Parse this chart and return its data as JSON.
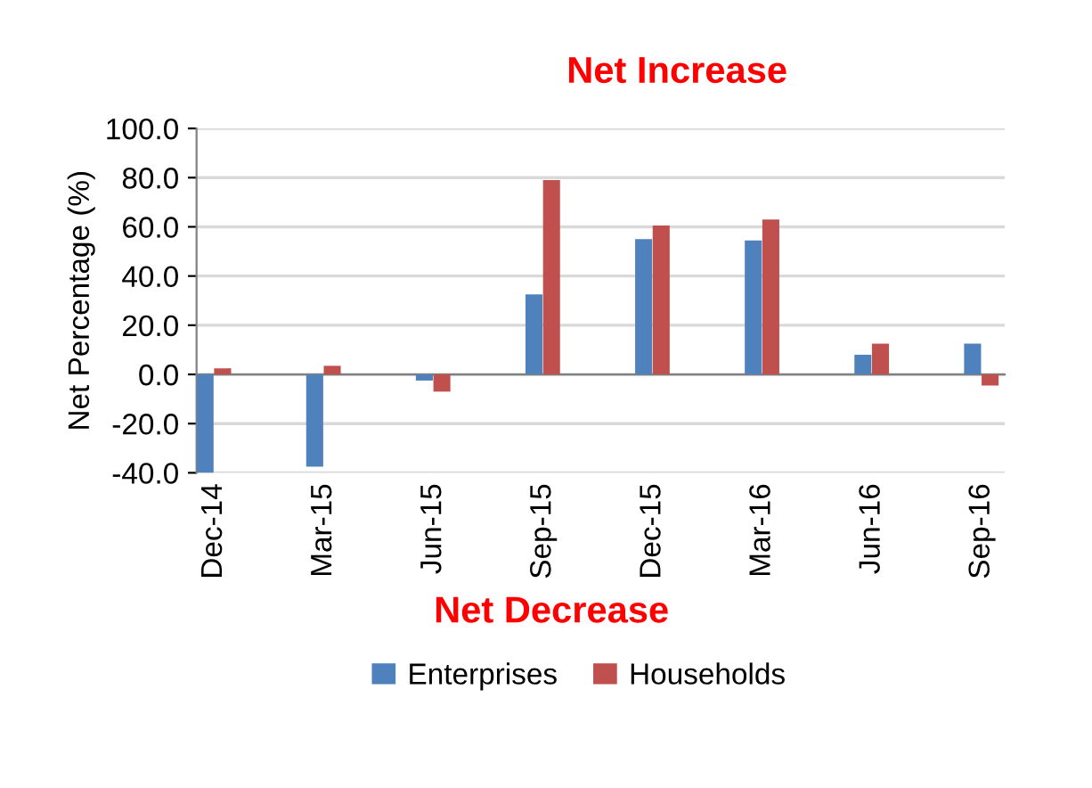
{
  "chart_data": {
    "type": "bar",
    "ylabel": "Net Percentage (%)",
    "categories": [
      "Dec-14",
      "Mar-15",
      "Jun-15",
      "Sep-15",
      "Dec-15",
      "Mar-16",
      "Jun-16",
      "Sep-16"
    ],
    "series": [
      {
        "name": "Enterprises",
        "color": "#4f81bd",
        "values": [
          -40.0,
          -37.5,
          -2.5,
          32.5,
          55.0,
          54.5,
          8.0,
          12.5
        ]
      },
      {
        "name": "Households",
        "color": "#c0504d",
        "values": [
          2.5,
          3.5,
          -7.0,
          79.0,
          60.5,
          63.0,
          12.5,
          -4.5
        ]
      }
    ],
    "ylim": [
      -40,
      100
    ],
    "yticks": [
      {
        "value": -40,
        "label": "-40.0"
      },
      {
        "value": -20,
        "label": "-20.0"
      },
      {
        "value": 0,
        "label": "0.0"
      },
      {
        "value": 20,
        "label": "20.0"
      },
      {
        "value": 40,
        "label": "40.0"
      },
      {
        "value": 60,
        "label": "60.0"
      },
      {
        "value": 80,
        "label": "80.0"
      },
      {
        "value": 100,
        "label": "100.0"
      }
    ],
    "grid": "y",
    "legend": "bottom",
    "annotations": [
      "Net Increase",
      "Net Decrease"
    ]
  }
}
